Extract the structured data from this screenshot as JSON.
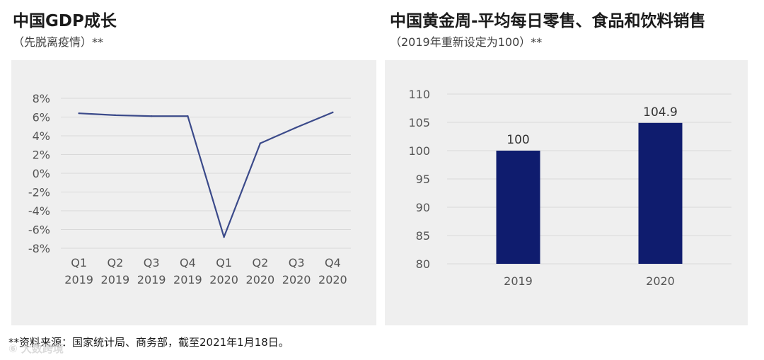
{
  "footnote": "**资料来源：国家统计局、商务部，截至2021年1月18日。",
  "watermark": "⑥ 大数跨境",
  "chart_data": [
    {
      "type": "line",
      "title": "中国GDP成长",
      "subtitle": "（先脱离疫情）**",
      "categories": [
        [
          "Q1",
          "2019"
        ],
        [
          "Q2",
          "2019"
        ],
        [
          "Q3",
          "2019"
        ],
        [
          "Q4",
          "2019"
        ],
        [
          "Q1",
          "2020"
        ],
        [
          "Q2",
          "2020"
        ],
        [
          "Q3",
          "2020"
        ],
        [
          "Q4",
          "2020"
        ]
      ],
      "series": [
        {
          "values": [
            6.4,
            6.2,
            6.1,
            6.1,
            -6.8,
            3.2,
            4.9,
            6.5
          ]
        }
      ],
      "ylim": [
        -8,
        8
      ],
      "yticks": [
        "8%",
        "6%",
        "4%",
        "2%",
        "0%",
        "-2%",
        "-4%",
        "-6%",
        "-8%"
      ],
      "ytick_values": [
        8,
        6,
        4,
        2,
        0,
        -2,
        -4,
        -6,
        -8
      ],
      "grid": true,
      "color": "#3b4a8a"
    },
    {
      "type": "bar",
      "title": "中国黄金周-平均每日零售、食品和饮料销售",
      "subtitle": "（2019年重新设定为100）**",
      "categories": [
        "2019",
        "2020"
      ],
      "values": [
        100,
        104.9
      ],
      "value_labels": [
        "100",
        "104.9"
      ],
      "ylim": [
        80,
        110
      ],
      "yticks": [
        "110",
        "105",
        "100",
        "95",
        "90",
        "85",
        "80"
      ],
      "ytick_values": [
        110,
        105,
        100,
        95,
        90,
        85,
        80
      ],
      "grid": true,
      "color": "#0f1c6e"
    }
  ]
}
